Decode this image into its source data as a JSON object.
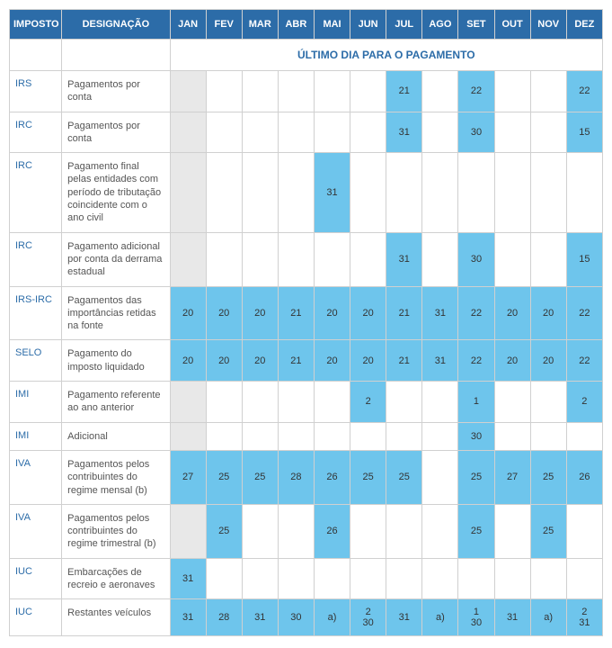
{
  "headers": {
    "tax": "IMPOSTO",
    "designation": "DESIGNAÇÃO",
    "months": [
      "JAN",
      "FEV",
      "MAR",
      "ABR",
      "MAI",
      "JUN",
      "JUL",
      "AGO",
      "SET",
      "OUT",
      "NOV",
      "DEZ"
    ]
  },
  "subheader": "ÚLTIMO DIA PARA O PAGAMENTO",
  "colors": {
    "header_bg": "#2c6ca8",
    "header_fg": "#ffffff",
    "highlight_bg": "#6ec5ec",
    "gray_bg": "#e8e8e8",
    "border": "#d0d0d0",
    "tax_link": "#2c6ca8"
  },
  "rows": [
    {
      "tax": "IRS",
      "desc": "Pagamentos por conta",
      "cells": [
        {
          "v": "",
          "s": "gray"
        },
        {
          "v": ""
        },
        {
          "v": ""
        },
        {
          "v": ""
        },
        {
          "v": ""
        },
        {
          "v": ""
        },
        {
          "v": "21",
          "s": "hl"
        },
        {
          "v": ""
        },
        {
          "v": "22",
          "s": "hl"
        },
        {
          "v": ""
        },
        {
          "v": ""
        },
        {
          "v": "22",
          "s": "hl"
        }
      ]
    },
    {
      "tax": "IRC",
      "desc": "Pagamentos por conta",
      "cells": [
        {
          "v": "",
          "s": "gray"
        },
        {
          "v": ""
        },
        {
          "v": ""
        },
        {
          "v": ""
        },
        {
          "v": ""
        },
        {
          "v": ""
        },
        {
          "v": "31",
          "s": "hl"
        },
        {
          "v": ""
        },
        {
          "v": "30",
          "s": "hl"
        },
        {
          "v": ""
        },
        {
          "v": ""
        },
        {
          "v": "15",
          "s": "hl"
        }
      ]
    },
    {
      "tax": "IRC",
      "desc": "Pagamento final pelas entidades com período de tributação coincidente com o ano civil",
      "cells": [
        {
          "v": "",
          "s": "gray"
        },
        {
          "v": ""
        },
        {
          "v": ""
        },
        {
          "v": ""
        },
        {
          "v": "31",
          "s": "hl"
        },
        {
          "v": ""
        },
        {
          "v": ""
        },
        {
          "v": ""
        },
        {
          "v": ""
        },
        {
          "v": ""
        },
        {
          "v": ""
        },
        {
          "v": ""
        }
      ]
    },
    {
      "tax": "IRC",
      "desc": "Pagamento adicional por conta da derrama estadual",
      "cells": [
        {
          "v": "",
          "s": "gray"
        },
        {
          "v": ""
        },
        {
          "v": ""
        },
        {
          "v": ""
        },
        {
          "v": ""
        },
        {
          "v": ""
        },
        {
          "v": "31",
          "s": "hl"
        },
        {
          "v": ""
        },
        {
          "v": "30",
          "s": "hl"
        },
        {
          "v": ""
        },
        {
          "v": ""
        },
        {
          "v": "15",
          "s": "hl"
        }
      ]
    },
    {
      "tax": "IRS-IRC",
      "desc": "Pagamentos das importâncias retidas na fonte",
      "cells": [
        {
          "v": "20",
          "s": "hl"
        },
        {
          "v": "20",
          "s": "hl"
        },
        {
          "v": "20",
          "s": "hl"
        },
        {
          "v": "21",
          "s": "hl"
        },
        {
          "v": "20",
          "s": "hl"
        },
        {
          "v": "20",
          "s": "hl"
        },
        {
          "v": "21",
          "s": "hl"
        },
        {
          "v": "31",
          "s": "hl"
        },
        {
          "v": "22",
          "s": "hl"
        },
        {
          "v": "20",
          "s": "hl"
        },
        {
          "v": "20",
          "s": "hl"
        },
        {
          "v": "22",
          "s": "hl"
        }
      ]
    },
    {
      "tax": "SELO",
      "desc": "Pagamento do imposto liquidado",
      "cells": [
        {
          "v": "20",
          "s": "hl"
        },
        {
          "v": "20",
          "s": "hl"
        },
        {
          "v": "20",
          "s": "hl"
        },
        {
          "v": "21",
          "s": "hl"
        },
        {
          "v": "20",
          "s": "hl"
        },
        {
          "v": "20",
          "s": "hl"
        },
        {
          "v": "21",
          "s": "hl"
        },
        {
          "v": "31",
          "s": "hl"
        },
        {
          "v": "22",
          "s": "hl"
        },
        {
          "v": "20",
          "s": "hl"
        },
        {
          "v": "20",
          "s": "hl"
        },
        {
          "v": "22",
          "s": "hl"
        }
      ]
    },
    {
      "tax": "IMI",
      "desc": "Pagamento referente ao ano anterior",
      "cells": [
        {
          "v": "",
          "s": "gray"
        },
        {
          "v": ""
        },
        {
          "v": ""
        },
        {
          "v": ""
        },
        {
          "v": ""
        },
        {
          "v": "2",
          "s": "hl"
        },
        {
          "v": ""
        },
        {
          "v": ""
        },
        {
          "v": "1",
          "s": "hl"
        },
        {
          "v": ""
        },
        {
          "v": ""
        },
        {
          "v": "2",
          "s": "hl"
        }
      ]
    },
    {
      "tax": "IMI",
      "desc": "Adicional",
      "cells": [
        {
          "v": "",
          "s": "gray"
        },
        {
          "v": ""
        },
        {
          "v": ""
        },
        {
          "v": ""
        },
        {
          "v": ""
        },
        {
          "v": ""
        },
        {
          "v": ""
        },
        {
          "v": ""
        },
        {
          "v": "30",
          "s": "hl"
        },
        {
          "v": ""
        },
        {
          "v": ""
        },
        {
          "v": ""
        }
      ]
    },
    {
      "tax": "IVA",
      "desc": "Pagamentos pelos contribuintes do regime mensal (b)",
      "cells": [
        {
          "v": "27",
          "s": "hl"
        },
        {
          "v": "25",
          "s": "hl"
        },
        {
          "v": "25",
          "s": "hl"
        },
        {
          "v": "28",
          "s": "hl"
        },
        {
          "v": "26",
          "s": "hl"
        },
        {
          "v": "25",
          "s": "hl"
        },
        {
          "v": "25",
          "s": "hl"
        },
        {
          "v": ""
        },
        {
          "v": "25",
          "s": "hl"
        },
        {
          "v": "27",
          "s": "hl"
        },
        {
          "v": "25",
          "s": "hl"
        },
        {
          "v": "26",
          "s": "hl"
        }
      ]
    },
    {
      "tax": "IVA",
      "desc": "Pagamentos pelos contribuintes do regime trimestral (b)",
      "cells": [
        {
          "v": "",
          "s": "gray"
        },
        {
          "v": "25",
          "s": "hl"
        },
        {
          "v": ""
        },
        {
          "v": ""
        },
        {
          "v": "26",
          "s": "hl"
        },
        {
          "v": ""
        },
        {
          "v": ""
        },
        {
          "v": ""
        },
        {
          "v": "25",
          "s": "hl"
        },
        {
          "v": ""
        },
        {
          "v": "25",
          "s": "hl"
        },
        {
          "v": ""
        }
      ]
    },
    {
      "tax": "IUC",
      "desc": "Embarcações de recreio e aeronaves",
      "cells": [
        {
          "v": "31",
          "s": "hl"
        },
        {
          "v": ""
        },
        {
          "v": ""
        },
        {
          "v": ""
        },
        {
          "v": ""
        },
        {
          "v": ""
        },
        {
          "v": ""
        },
        {
          "v": ""
        },
        {
          "v": ""
        },
        {
          "v": ""
        },
        {
          "v": ""
        },
        {
          "v": ""
        }
      ]
    },
    {
      "tax": "IUC",
      "desc": "Restantes veículos",
      "cells": [
        {
          "v": "31",
          "s": "hl"
        },
        {
          "v": "28",
          "s": "hl"
        },
        {
          "v": "31",
          "s": "hl"
        },
        {
          "v": "30",
          "s": "hl"
        },
        {
          "v": "a)",
          "s": "hl"
        },
        {
          "v": "2\n30",
          "s": "hl"
        },
        {
          "v": "31",
          "s": "hl"
        },
        {
          "v": "a)",
          "s": "hl"
        },
        {
          "v": "1\n30",
          "s": "hl"
        },
        {
          "v": "31",
          "s": "hl"
        },
        {
          "v": "a)",
          "s": "hl"
        },
        {
          "v": "2\n31",
          "s": "hl"
        }
      ]
    }
  ]
}
